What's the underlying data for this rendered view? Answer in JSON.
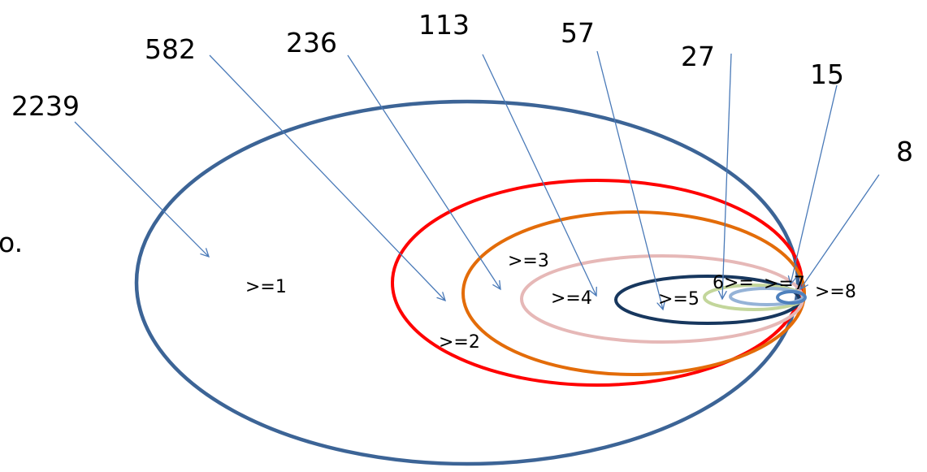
{
  "colors": {
    "level_1": "#3c6496",
    "level_2": "#ff0000",
    "level_3": "#e36c09",
    "level_4": "#e6b8b7",
    "level_5": "#17375e",
    "level_6": "#c3d69b",
    "level_7": "#95b3d7",
    "level_8": "#4f81bd",
    "arrow": "#4a7ab8"
  },
  "partial_left_text": "o.",
  "levels": [
    {
      "id": "1",
      "label": ">=1",
      "count": "2239"
    },
    {
      "id": "2",
      "label": ">=2",
      "count": "582"
    },
    {
      "id": "3",
      "label": ">=3",
      "count": "236"
    },
    {
      "id": "4",
      "label": ">=4",
      "count": "113"
    },
    {
      "id": "5",
      "label": ">=5",
      "count": "57"
    },
    {
      "id": "6",
      "label": "6>=",
      "count": "27"
    },
    {
      "id": "7",
      "label": ">=7",
      "count": "15"
    },
    {
      "id": "8",
      "label": ">=8",
      "count": "8"
    }
  ]
}
